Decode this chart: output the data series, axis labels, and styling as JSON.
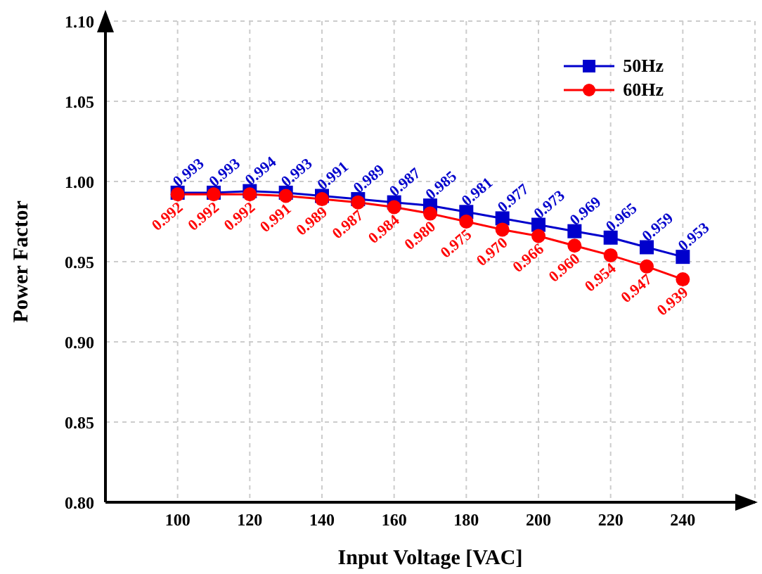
{
  "chart_data": {
    "type": "line",
    "xlabel": "Input Voltage [VAC]",
    "ylabel": "Power Factor",
    "x": [
      100,
      110,
      120,
      130,
      140,
      150,
      160,
      170,
      180,
      190,
      200,
      210,
      220,
      230,
      240
    ],
    "series": [
      {
        "name": "50Hz",
        "color": "#0000cc",
        "marker": "square",
        "values": [
          0.993,
          0.993,
          0.994,
          0.993,
          0.991,
          0.989,
          0.987,
          0.985,
          0.981,
          0.977,
          0.973,
          0.969,
          0.965,
          0.959,
          0.953
        ],
        "value_labels": [
          "0.993",
          "0.993",
          "0.994",
          "0.993",
          "0.991",
          "0.989",
          "0.987",
          "0.985",
          "0.981",
          "0.977",
          "0.973",
          "0.969",
          "0.965",
          "0.959",
          "0.953"
        ]
      },
      {
        "name": "60Hz",
        "color": "#ff0000",
        "marker": "circle",
        "values": [
          0.992,
          0.992,
          0.992,
          0.991,
          0.989,
          0.987,
          0.984,
          0.98,
          0.975,
          0.97,
          0.966,
          0.96,
          0.954,
          0.947,
          0.939
        ],
        "value_labels": [
          "0.992",
          "0.992",
          "0.992",
          "0.991",
          "0.989",
          "0.987",
          "0.984",
          "0.980",
          "0.975",
          "0.970",
          "0.966",
          "0.960",
          "0.954",
          "0.947",
          "0.939"
        ]
      }
    ],
    "xlim": [
      80,
      260
    ],
    "xticks": [
      100,
      120,
      140,
      160,
      180,
      200,
      220,
      240
    ],
    "ylim": [
      0.8,
      1.1
    ],
    "yticks": [
      {
        "value": 0.8,
        "label": "0.80"
      },
      0.85,
      {
        "value": 0.9,
        "label": "0.90"
      },
      0.95,
      {
        "value": 1.0,
        "label": "1.00"
      },
      1.05,
      {
        "value": 1.1,
        "label": "1.10"
      }
    ],
    "grid": true,
    "legend": "top right",
    "line_style": "solid"
  }
}
